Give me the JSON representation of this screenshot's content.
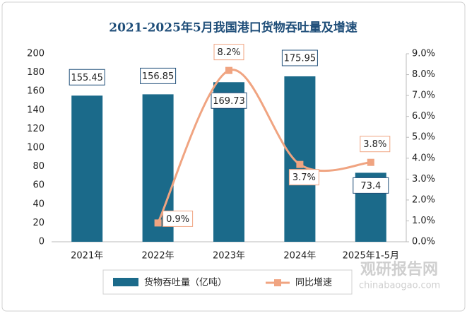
{
  "chart_data": {
    "type": "bar_line",
    "title": "2021-2025年5月我国港口货物吞吐量及增速",
    "categories": [
      "2021年",
      "2022年",
      "2023年",
      "2024年",
      "2025年1-5月"
    ],
    "series": [
      {
        "name": "货物吞吐量（亿吨）",
        "type": "bar",
        "color": "#1b6a8a",
        "values": [
          155.45,
          156.85,
          169.73,
          175.95,
          73.4
        ]
      },
      {
        "name": "同比增速",
        "type": "line",
        "axis": "y2",
        "color": "#f0a481",
        "values": [
          null,
          0.9,
          8.2,
          3.7,
          3.8
        ],
        "value_labels": [
          null,
          "0.9%",
          "8.2%",
          "3.7%",
          "3.8%"
        ]
      }
    ],
    "ylim": [
      0,
      200
    ],
    "yticks": [
      0,
      20,
      40,
      60,
      80,
      100,
      120,
      140,
      160,
      180,
      200
    ],
    "y2lim": [
      0,
      9
    ],
    "y2ticks": [
      {
        "value": 0,
        "label": "0.0%"
      },
      {
        "value": 1,
        "label": "1.0%"
      },
      {
        "value": 2,
        "label": "2.0%"
      },
      {
        "value": 3,
        "label": "3.0%"
      },
      {
        "value": 4,
        "label": "4.0%"
      },
      {
        "value": 5,
        "label": "5.0%"
      },
      {
        "value": 6,
        "label": "6.0%"
      },
      {
        "value": 7,
        "label": "7.0%"
      },
      {
        "value": 8,
        "label": "8.0%"
      },
      {
        "value": 9,
        "label": "9.0%"
      }
    ],
    "legend": "bottom",
    "watermark": [
      "观研报告网",
      "chinabaogao.com"
    ]
  }
}
